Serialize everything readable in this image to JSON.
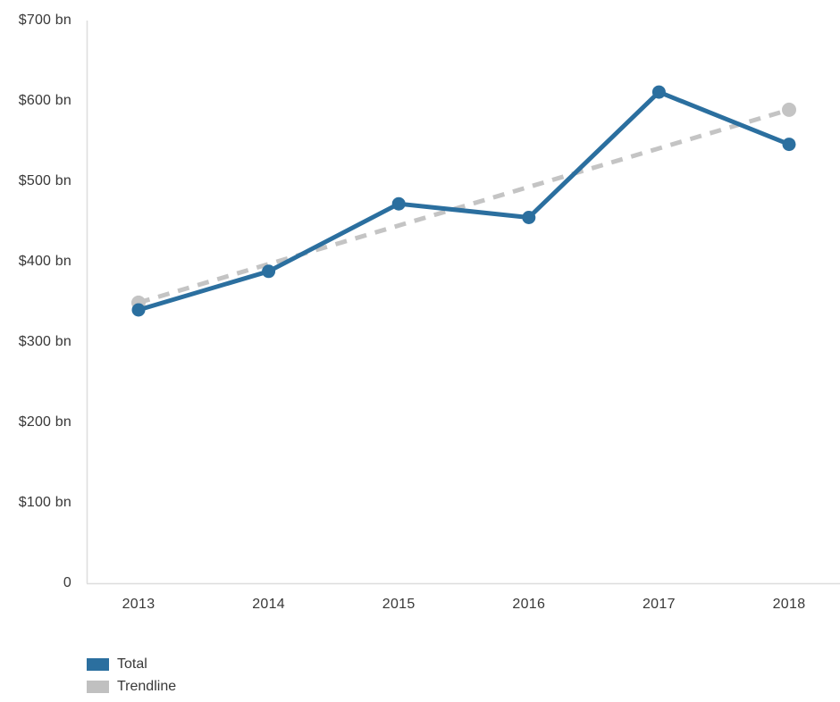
{
  "chart_data": {
    "type": "line",
    "title": "",
    "x_unit": "year",
    "categories": [
      "2013",
      "2014",
      "2015",
      "2016",
      "2017",
      "2018"
    ],
    "series": [
      {
        "name": "Total",
        "values": [
          340,
          388,
          472,
          455,
          611,
          546
        ],
        "color": "#2b6f9f",
        "style": "solid",
        "markers": "all"
      },
      {
        "name": "Trendline",
        "values": [
          349,
          397,
          445,
          493,
          541,
          589
        ],
        "color": "#c4c4c4",
        "style": "dashed",
        "markers": "ends"
      }
    ],
    "y_axis": {
      "min": 0,
      "max": 700,
      "tick_interval": 100,
      "tick_labels": [
        "0",
        "$100 bn",
        "$200 bn",
        "$300 bn",
        "$400 bn",
        "$500 bn",
        "$600 bn",
        "$700 bn"
      ],
      "unit": "$ bn"
    },
    "x_axis": {
      "tick_labels": [
        "2013",
        "2014",
        "2015",
        "2016",
        "2017",
        "2018"
      ]
    },
    "legend": {
      "position": "bottom-left",
      "entries": [
        {
          "label": "Total",
          "color": "#2b6f9f"
        },
        {
          "label": "Trendline",
          "color": "#c0c0c0"
        }
      ]
    },
    "grid": false,
    "axis_line_color": "#dedede"
  }
}
